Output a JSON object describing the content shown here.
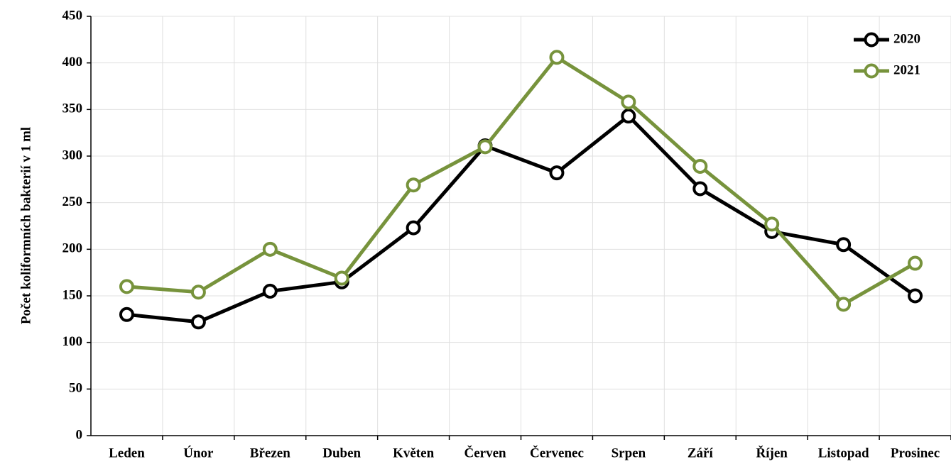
{
  "chart_data": {
    "type": "line",
    "y_label": "Počet koliformních bakterií v 1 ml",
    "categories": [
      "Leden",
      "Únor",
      "Březen",
      "Duben",
      "Květen",
      "Červen",
      "Červenec",
      "Srpen",
      "Září",
      "Říjen",
      "Listopad",
      "Prosinec"
    ],
    "series": [
      {
        "name": "2020",
        "color": "#000000",
        "values": [
          130,
          122,
          155,
          165,
          223,
          311,
          282,
          343,
          265,
          219,
          205,
          150
        ]
      },
      {
        "name": "2021",
        "color": "#77933c",
        "values": [
          160,
          154,
          200,
          169,
          269,
          310,
          406,
          358,
          289,
          227,
          141,
          185
        ]
      }
    ],
    "ylim": [
      0,
      450
    ],
    "yticks": [
      0,
      50,
      100,
      150,
      200,
      250,
      300,
      350,
      400,
      450
    ],
    "grid": true,
    "legend": "upper right"
  }
}
